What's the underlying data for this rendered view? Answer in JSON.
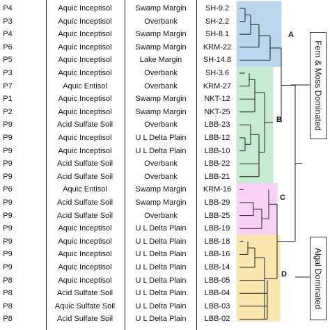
{
  "rows": [
    {
      "plot": "P4",
      "soil": "Aquic Inceptisol",
      "env": "Swamp Margin",
      "sample": "SH-9.2"
    },
    {
      "plot": "P3",
      "soil": "Aquic Inceptisol",
      "env": "Overbank",
      "sample": "SH-2.2"
    },
    {
      "plot": "P4",
      "soil": "Aquic Inceptisol",
      "env": "Swamp Margin",
      "sample": "SH-8.1"
    },
    {
      "plot": "P6",
      "soil": "Aquic Inceptisol",
      "env": "Swamp Margin",
      "sample": "KRM-22"
    },
    {
      "plot": "P5",
      "soil": "Aquic Inceptisol",
      "env": "Lake Margin",
      "sample": "SH-14.8"
    },
    {
      "plot": "P3",
      "soil": "Aquic Inceptisol",
      "env": "Overbank",
      "sample": "SH-3.6"
    },
    {
      "plot": "P7",
      "soil": "Aquic Entisol",
      "env": "Overbank",
      "sample": "KRM-27"
    },
    {
      "plot": "P1",
      "soil": "Aquic Inceptisol",
      "env": "Swamp Margin",
      "sample": "NKT-12"
    },
    {
      "plot": "P2",
      "soil": "Aquic Inceptisol",
      "env": "Swamp Margin",
      "sample": "NKT-25"
    },
    {
      "plot": "P9",
      "soil": "Acid Sulfate Soil",
      "env": "Overbank",
      "sample": "LBB-23"
    },
    {
      "plot": "P9",
      "soil": "Aquic Inceptisol",
      "env": "U L Delta Plain",
      "sample": "LBB-12"
    },
    {
      "plot": "P9",
      "soil": "Aquic Inceptisol",
      "env": "U L Delta Plain",
      "sample": "LBB-10"
    },
    {
      "plot": "P9",
      "soil": "Acid Sulfate Soil",
      "env": "Overbank",
      "sample": "LBB-22"
    },
    {
      "plot": "P9",
      "soil": "Acid Sulfate Soil",
      "env": "Overbank",
      "sample": "LBB-21"
    },
    {
      "plot": "P6",
      "soil": "Aquic Entisol",
      "env": "Swamp Margin",
      "sample": "KRM-16"
    },
    {
      "plot": "P9",
      "soil": "Acid Sulfate Soil",
      "env": "Swamp Margin",
      "sample": "LBB-29"
    },
    {
      "plot": "P9",
      "soil": "Acid Sulfate Soil",
      "env": "Overbank",
      "sample": "LBB-25"
    },
    {
      "plot": "P9",
      "soil": "Aquic Inceptisol",
      "env": "U L Delta Plain",
      "sample": "LBB-19"
    },
    {
      "plot": "P9",
      "soil": "Aquic Inceptisol",
      "env": "U L Delta Plain",
      "sample": "LBB-18"
    },
    {
      "plot": "P9",
      "soil": "Aquic Inceptisol",
      "env": "U L Delta Plain",
      "sample": "LBB-16"
    },
    {
      "plot": "P9",
      "soil": "Aquic Inceptisol",
      "env": "U L Delta Plain",
      "sample": "LBB-14"
    },
    {
      "plot": "P8",
      "soil": "Aquic Inceptisol",
      "env": "U L Delta Plain",
      "sample": "LBB-05"
    },
    {
      "plot": "P8",
      "soil": "Acid Sulfate Soil",
      "env": "U L Delta Plain",
      "sample": "LBB-04"
    },
    {
      "plot": "P8",
      "soil": "Aquic Sulfate Soil",
      "env": "U L Delta Plain",
      "sample": "LBB-03"
    },
    {
      "plot": "P8",
      "soil": "Acid Sulfate Soil",
      "env": "U L Delta Plain",
      "sample": "LBB-02"
    }
  ],
  "clusters": [
    {
      "label": "A",
      "color": "#bcd6ee"
    },
    {
      "label": "B",
      "color": "#c6ead2"
    },
    {
      "label": "C",
      "color": "#f7d2f5"
    },
    {
      "label": "D",
      "color": "#fae7b0"
    }
  ],
  "groups": {
    "fern_moss": "Fern & Moss Dominated",
    "algal": "Algal Dominated"
  }
}
